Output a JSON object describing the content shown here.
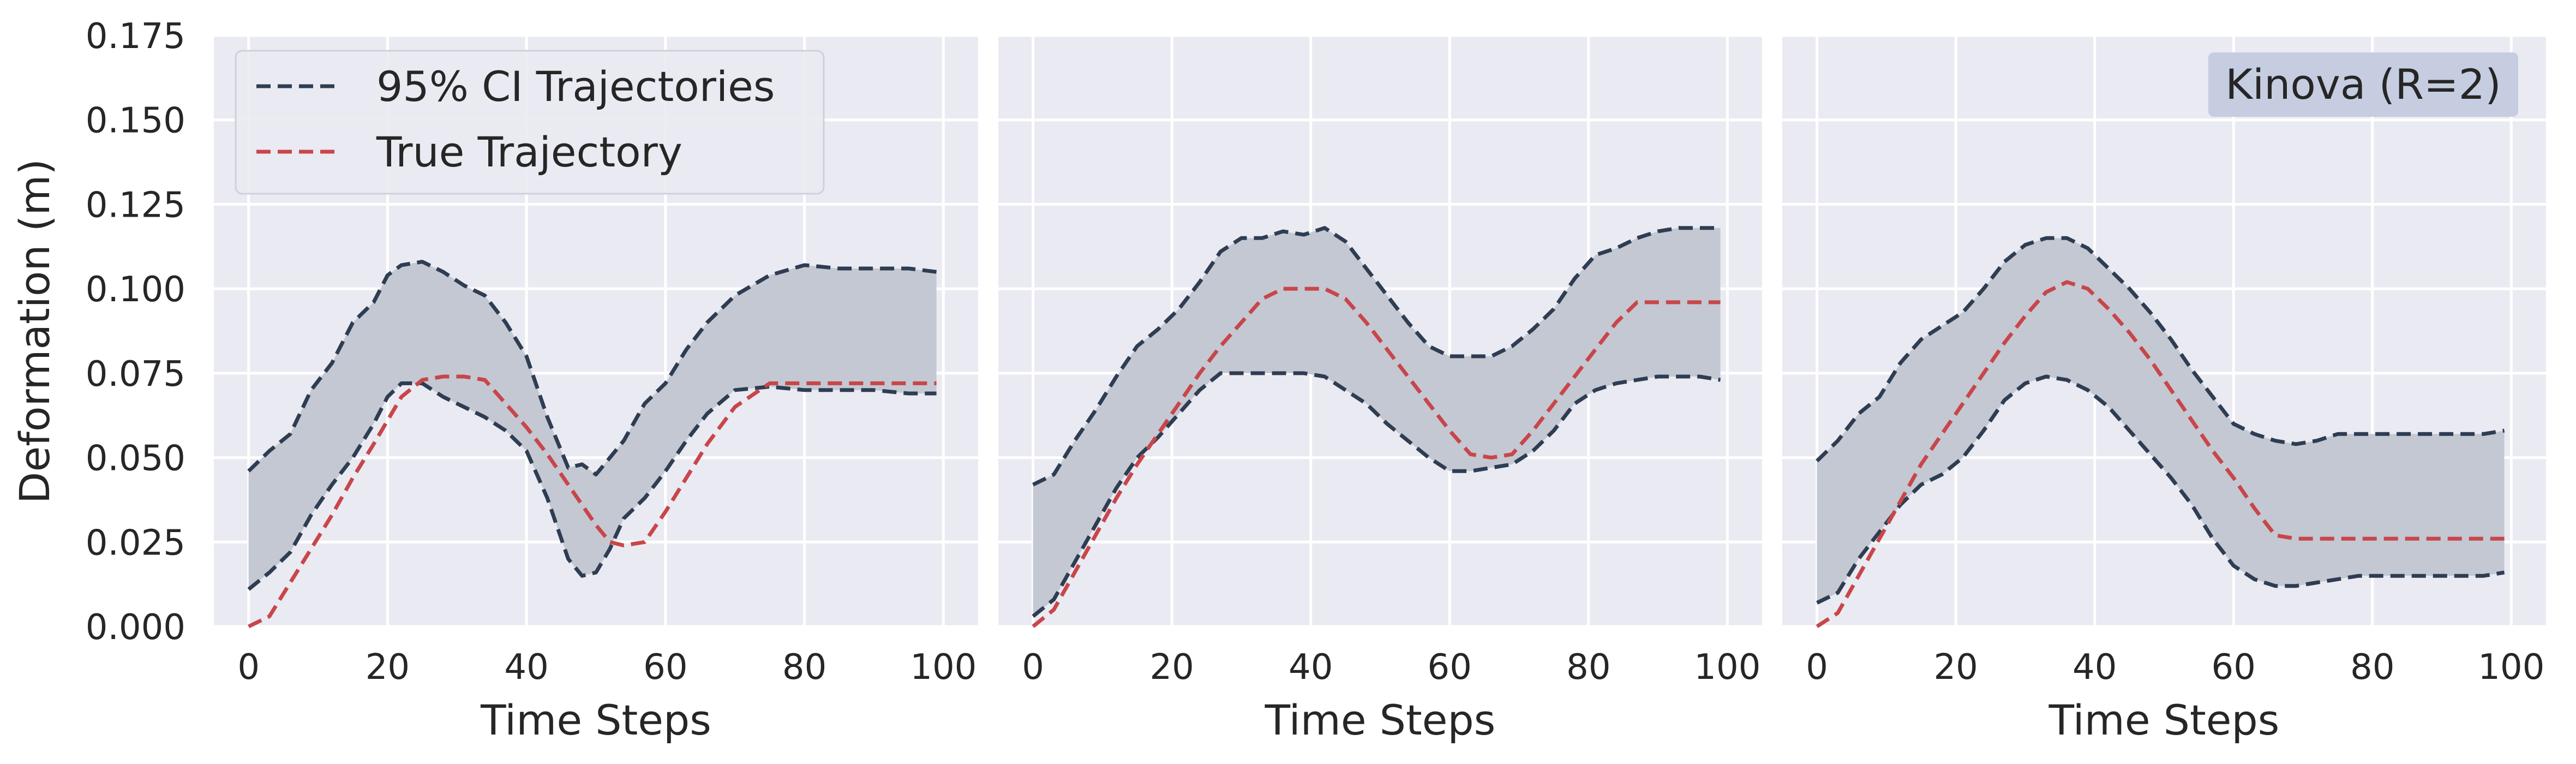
{
  "chart_data": [
    {
      "type": "line",
      "xlabel": "Time Steps",
      "ylabel": "Deformation (m)",
      "xlim": [
        -5,
        105
      ],
      "ylim": [
        0,
        0.175
      ],
      "xticks": [
        "0",
        "20",
        "40",
        "60",
        "80",
        "100"
      ],
      "yticks": [
        "0.000",
        "0.025",
        "0.050",
        "0.075",
        "0.100",
        "0.125",
        "0.150",
        "0.175"
      ],
      "grid": true,
      "legend": {
        "position": "top-left",
        "entries": [
          "95% CI Trajectories",
          "True Trajectory"
        ]
      },
      "annotation": "",
      "x": [
        0,
        3,
        6,
        9,
        12,
        15,
        18,
        20,
        22,
        25,
        28,
        31,
        34,
        37,
        40,
        43,
        46,
        48,
        50,
        52,
        54,
        57,
        60,
        63,
        66,
        70,
        75,
        80,
        85,
        90,
        95,
        99
      ],
      "series": [
        {
          "name": "95% CI Trajectories",
          "role": "upper",
          "color": "#2e3d52",
          "values": [
            0.046,
            0.052,
            0.057,
            0.07,
            0.078,
            0.09,
            0.096,
            0.104,
            0.107,
            0.108,
            0.105,
            0.101,
            0.098,
            0.09,
            0.08,
            0.062,
            0.047,
            0.048,
            0.045,
            0.05,
            0.055,
            0.066,
            0.072,
            0.082,
            0.09,
            0.098,
            0.104,
            0.107,
            0.106,
            0.106,
            0.106,
            0.105
          ]
        },
        {
          "name": "95% CI Trajectories",
          "role": "lower",
          "color": "#2e3d52",
          "values": [
            0.011,
            0.016,
            0.022,
            0.033,
            0.042,
            0.05,
            0.06,
            0.068,
            0.072,
            0.072,
            0.068,
            0.065,
            0.062,
            0.058,
            0.052,
            0.038,
            0.02,
            0.015,
            0.016,
            0.023,
            0.032,
            0.038,
            0.046,
            0.055,
            0.063,
            0.07,
            0.071,
            0.07,
            0.07,
            0.07,
            0.069,
            0.069
          ]
        },
        {
          "name": "True Trajectory",
          "role": "true",
          "color": "#c8464a",
          "values": [
            0.0,
            0.003,
            0.013,
            0.023,
            0.033,
            0.044,
            0.054,
            0.061,
            0.068,
            0.073,
            0.074,
            0.074,
            0.073,
            0.066,
            0.059,
            0.051,
            0.042,
            0.036,
            0.03,
            0.025,
            0.024,
            0.025,
            0.034,
            0.044,
            0.054,
            0.065,
            0.072,
            0.072,
            0.072,
            0.072,
            0.072,
            0.072
          ]
        }
      ]
    },
    {
      "type": "line",
      "xlabel": "Time Steps",
      "ylabel": "",
      "xlim": [
        -5,
        105
      ],
      "ylim": [
        0,
        0.175
      ],
      "xticks": [
        "0",
        "20",
        "40",
        "60",
        "80",
        "100"
      ],
      "yticks": [],
      "grid": true,
      "legend": null,
      "annotation": "",
      "x": [
        0,
        3,
        6,
        9,
        12,
        15,
        18,
        21,
        24,
        27,
        30,
        33,
        36,
        39,
        42,
        45,
        48,
        51,
        54,
        57,
        60,
        63,
        66,
        69,
        72,
        75,
        78,
        81,
        84,
        87,
        90,
        93,
        96,
        99
      ],
      "series": [
        {
          "name": "95% CI Trajectories",
          "role": "upper",
          "color": "#2e3d52",
          "values": [
            0.042,
            0.045,
            0.055,
            0.064,
            0.074,
            0.083,
            0.088,
            0.094,
            0.102,
            0.111,
            0.115,
            0.115,
            0.117,
            0.116,
            0.118,
            0.114,
            0.106,
            0.098,
            0.09,
            0.083,
            0.08,
            0.08,
            0.08,
            0.083,
            0.088,
            0.094,
            0.103,
            0.11,
            0.112,
            0.115,
            0.117,
            0.118,
            0.118,
            0.118
          ]
        },
        {
          "name": "95% CI Trajectories",
          "role": "lower",
          "color": "#2e3d52",
          "values": [
            0.003,
            0.008,
            0.019,
            0.03,
            0.041,
            0.05,
            0.056,
            0.063,
            0.07,
            0.075,
            0.075,
            0.075,
            0.075,
            0.075,
            0.074,
            0.07,
            0.066,
            0.06,
            0.055,
            0.05,
            0.046,
            0.046,
            0.047,
            0.048,
            0.052,
            0.058,
            0.066,
            0.07,
            0.072,
            0.073,
            0.074,
            0.074,
            0.074,
            0.073
          ]
        },
        {
          "name": "True Trajectory",
          "role": "true",
          "color": "#c8464a",
          "values": [
            0.0,
            0.005,
            0.016,
            0.027,
            0.038,
            0.048,
            0.057,
            0.066,
            0.075,
            0.083,
            0.09,
            0.097,
            0.1,
            0.1,
            0.1,
            0.097,
            0.09,
            0.082,
            0.074,
            0.066,
            0.058,
            0.051,
            0.05,
            0.051,
            0.058,
            0.066,
            0.074,
            0.082,
            0.09,
            0.096,
            0.096,
            0.096,
            0.096,
            0.096
          ]
        }
      ]
    },
    {
      "type": "line",
      "xlabel": "Time Steps",
      "ylabel": "",
      "xlim": [
        -5,
        105
      ],
      "ylim": [
        0,
        0.175
      ],
      "xticks": [
        "0",
        "20",
        "40",
        "60",
        "80",
        "100"
      ],
      "yticks": [],
      "grid": true,
      "legend": null,
      "annotation": "Kinova (R=2)",
      "x": [
        0,
        3,
        6,
        9,
        12,
        15,
        18,
        21,
        24,
        27,
        30,
        33,
        36,
        39,
        42,
        45,
        48,
        51,
        54,
        57,
        60,
        63,
        66,
        69,
        72,
        75,
        78,
        81,
        84,
        87,
        90,
        93,
        96,
        99
      ],
      "series": [
        {
          "name": "95% CI Trajectories",
          "role": "upper",
          "color": "#2e3d52",
          "values": [
            0.049,
            0.055,
            0.063,
            0.068,
            0.078,
            0.085,
            0.089,
            0.093,
            0.1,
            0.108,
            0.113,
            0.115,
            0.115,
            0.112,
            0.106,
            0.1,
            0.093,
            0.085,
            0.076,
            0.068,
            0.06,
            0.057,
            0.055,
            0.054,
            0.055,
            0.057,
            0.057,
            0.057,
            0.057,
            0.057,
            0.057,
            0.057,
            0.057,
            0.058
          ]
        },
        {
          "name": "95% CI Trajectories",
          "role": "lower",
          "color": "#2e3d52",
          "values": [
            0.007,
            0.01,
            0.02,
            0.028,
            0.036,
            0.042,
            0.045,
            0.05,
            0.058,
            0.067,
            0.072,
            0.074,
            0.073,
            0.07,
            0.065,
            0.058,
            0.051,
            0.044,
            0.036,
            0.026,
            0.018,
            0.014,
            0.012,
            0.012,
            0.013,
            0.014,
            0.015,
            0.015,
            0.015,
            0.015,
            0.015,
            0.015,
            0.015,
            0.016
          ]
        },
        {
          "name": "True Trajectory",
          "role": "true",
          "color": "#c8464a",
          "values": [
            0.0,
            0.004,
            0.015,
            0.026,
            0.037,
            0.048,
            0.057,
            0.066,
            0.075,
            0.084,
            0.092,
            0.099,
            0.102,
            0.1,
            0.094,
            0.087,
            0.079,
            0.07,
            0.061,
            0.052,
            0.044,
            0.035,
            0.027,
            0.026,
            0.026,
            0.026,
            0.026,
            0.026,
            0.026,
            0.026,
            0.026,
            0.026,
            0.026,
            0.026
          ]
        }
      ]
    }
  ],
  "colors": {
    "panel_bg": "#eaeaf2",
    "grid": "#ffffff",
    "ci_line": "#2e3d52",
    "ci_fill": "#c4c8d2",
    "true_line": "#c8464a",
    "annotation_bg": "#c6cde0"
  }
}
